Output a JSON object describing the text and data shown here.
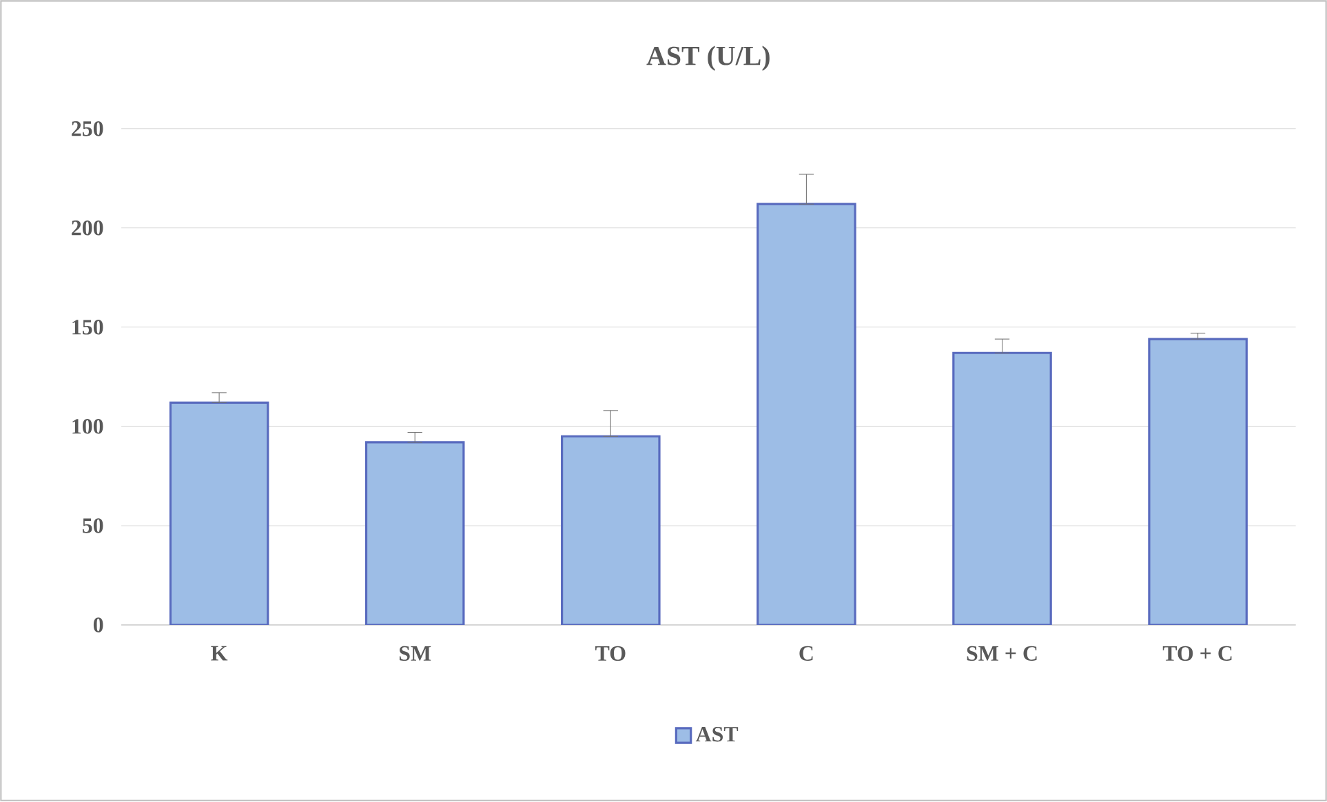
{
  "chart_data": {
    "type": "bar",
    "title": "AST (U/L)",
    "categories": [
      "K",
      "SM",
      "TO",
      "C",
      "SM + C",
      "TO + C"
    ],
    "series": [
      {
        "name": "AST",
        "color": "#9dbde6",
        "values": [
          112,
          92,
          95,
          212,
          137,
          144
        ],
        "errors": [
          [
            112,
            117
          ],
          [
            92,
            97
          ],
          [
            95,
            108
          ],
          [
            212,
            227
          ],
          [
            137,
            144
          ],
          [
            144,
            147
          ]
        ]
      }
    ],
    "ylim": [
      0,
      250
    ],
    "yticks": [
      0,
      50,
      100,
      150,
      200,
      250
    ],
    "grid": "y",
    "legend": "bottom"
  }
}
